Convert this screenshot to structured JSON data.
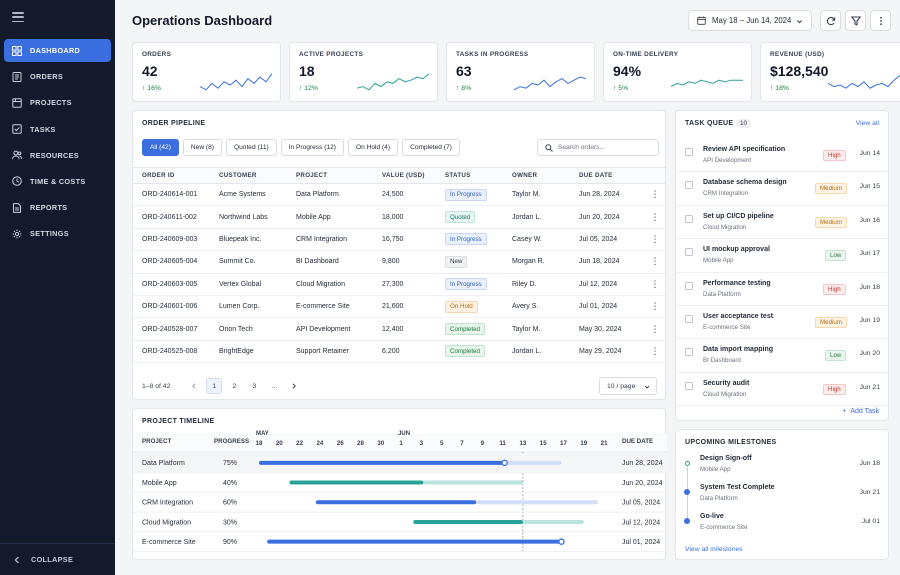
{
  "sidebar": {
    "items": [
      {
        "label": "DASHBOARD",
        "icon": "grid-icon",
        "active": true
      },
      {
        "label": "ORDERS",
        "icon": "receipt-icon",
        "active": false
      },
      {
        "label": "PROJECTS",
        "icon": "folder-icon",
        "active": false
      },
      {
        "label": "TASKS",
        "icon": "checkbox-icon",
        "active": false
      },
      {
        "label": "RESOURCES",
        "icon": "users-icon",
        "active": false
      },
      {
        "label": "TIME & COSTS",
        "icon": "clock-icon",
        "active": false
      },
      {
        "label": "REPORTS",
        "icon": "document-icon",
        "active": false
      },
      {
        "label": "SETTINGS",
        "icon": "gear-icon",
        "active": false
      }
    ],
    "collapse_label": "COLLAPSE"
  },
  "header": {
    "title": "Operations Dashboard",
    "date_range": "May 18 – Jun 14, 2024"
  },
  "kpis": [
    {
      "label": "ORDERS",
      "value": "42",
      "delta": "16%"
    },
    {
      "label": "ACTIVE PROJECTS",
      "value": "18",
      "delta": "12%"
    },
    {
      "label": "TASKS IN PROGRESS",
      "value": "63",
      "delta": "8%"
    },
    {
      "label": "ON-TIME DELIVERY",
      "value": "94%",
      "delta": "5%"
    },
    {
      "label": "REVENUE (USD)",
      "value": "$128,540",
      "delta": "18%"
    }
  ],
  "colors": {
    "accent": "#3b6fe0",
    "teal": "#2aa198",
    "positive": "#15803d",
    "sidebar_bg": "#121a2b"
  },
  "orders": {
    "title": "ORDER PIPELINE",
    "filters": [
      "All (42)",
      "New (8)",
      "Quoted (11)",
      "In Progress (12)",
      "On Hold (4)",
      "Completed (7)"
    ],
    "search_placeholder": "Search orders...",
    "columns": [
      "ORDER ID",
      "CUSTOMER",
      "PROJECT",
      "VALUE (USD)",
      "STATUS",
      "OWNER",
      "DUE DATE"
    ],
    "rows": [
      {
        "id": "ORD-240614-001",
        "customer": "Acme Systems",
        "project": "Data Platform",
        "value": "24,500",
        "status": "In Progress",
        "status_key": "inprogress",
        "owner": "Taylor M.",
        "due": "Jun 28, 2024"
      },
      {
        "id": "ORD-240611-002",
        "customer": "Northwind Labs",
        "project": "Mobile App",
        "value": "18,000",
        "status": "Quoted",
        "status_key": "quoted",
        "owner": "Jordan L.",
        "due": "Jun 20, 2024"
      },
      {
        "id": "ORD-240609-003",
        "customer": "Bluepeak Inc.",
        "project": "CRM Integration",
        "value": "16,750",
        "status": "In Progress",
        "status_key": "inprogress",
        "owner": "Casey W.",
        "due": "Jul 05, 2024"
      },
      {
        "id": "ORD-240605-004",
        "customer": "Summit Co.",
        "project": "BI Dashboard",
        "value": "9,800",
        "status": "New",
        "status_key": "new",
        "owner": "Morgan R.",
        "due": "Jun 18, 2024"
      },
      {
        "id": "ORD-240603-005",
        "customer": "Vertex Global",
        "project": "Cloud Migration",
        "value": "27,300",
        "status": "In Progress",
        "status_key": "inprogress",
        "owner": "Riley D.",
        "due": "Jul 12, 2024"
      },
      {
        "id": "ORD-240601-006",
        "customer": "Lumen Corp.",
        "project": "E-commerce Site",
        "value": "21,600",
        "status": "On Hold",
        "status_key": "onhold",
        "owner": "Avery S.",
        "due": "Jul 01, 2024"
      },
      {
        "id": "ORD-240528-007",
        "customer": "Orion Tech",
        "project": "API Development",
        "value": "12,400",
        "status": "Completed",
        "status_key": "completed",
        "owner": "Taylor M.",
        "due": "May 30, 2024"
      },
      {
        "id": "ORD-240525-008",
        "customer": "BrightEdge",
        "project": "Support Retainer",
        "value": "6,200",
        "status": "Completed",
        "status_key": "completed",
        "owner": "Jordan L.",
        "due": "May 29, 2024"
      }
    ],
    "pager": {
      "range": "1–8 of 42",
      "pages": [
        "1",
        "2",
        "3",
        "..."
      ],
      "current": "1",
      "per_page": "10 / page"
    }
  },
  "timeline": {
    "title": "PROJECT TIMELINE",
    "columns": {
      "project": "PROJECT",
      "progress": "PROGRESS",
      "due": "DUE DATE"
    },
    "months": [
      {
        "label": "MAY",
        "index": 0
      },
      {
        "label": "JUN",
        "index": 7
      }
    ],
    "days": [
      "18",
      "20",
      "22",
      "24",
      "26",
      "28",
      "30",
      "1",
      "3",
      "5",
      "7",
      "9",
      "11",
      "13",
      "15",
      "17",
      "19",
      "21"
    ],
    "today_index": 13,
    "rows": [
      {
        "project": "Data Platform",
        "progress": "75%",
        "due": "Jun 28, 2024",
        "start": 0,
        "filled_end": 12.1,
        "end": 14.9,
        "color": "blue",
        "marker": true
      },
      {
        "project": "Mobile App",
        "progress": "40%",
        "due": "Jun 20, 2024",
        "start": 1.5,
        "filled_end": 8.1,
        "end": 13.0,
        "color": "teal",
        "marker": false
      },
      {
        "project": "CRM Integration",
        "progress": "60%",
        "due": "Jul 05, 2024",
        "start": 2.8,
        "filled_end": 10.7,
        "end": 16.7,
        "color": "blue",
        "marker": false
      },
      {
        "project": "Cloud Migration",
        "progress": "30%",
        "due": "Jul 12, 2024",
        "start": 7.6,
        "filled_end": 13.0,
        "end": 16.0,
        "color": "teal",
        "marker": false
      },
      {
        "project": "E-commerce Site",
        "progress": "90%",
        "due": "Jul 01, 2024",
        "start": 0.4,
        "filled_end": 14.9,
        "end": 14.9,
        "color": "blue",
        "marker": true
      }
    ]
  },
  "tasks": {
    "title": "TASK QUEUE",
    "count": "10",
    "view_all": "View all",
    "items": [
      {
        "title": "Review API specification",
        "project": "API Development",
        "priority": "High",
        "due": "Jun 14"
      },
      {
        "title": "Database schema design",
        "project": "CRM Integration",
        "priority": "Medium",
        "due": "Jun 15"
      },
      {
        "title": "Set up CI/CD pipeline",
        "project": "Cloud Migration",
        "priority": "Medium",
        "due": "Jun 16"
      },
      {
        "title": "UI mockup approval",
        "project": "Mobile App",
        "priority": "Low",
        "due": "Jun 17"
      },
      {
        "title": "Performance testing",
        "project": "Data Platform",
        "priority": "High",
        "due": "Jun 18"
      },
      {
        "title": "User acceptance test",
        "project": "E-commerce Site",
        "priority": "Medium",
        "due": "Jun 19"
      },
      {
        "title": "Data import mapping",
        "project": "BI Dashboard",
        "priority": "Low",
        "due": "Jun 20"
      },
      {
        "title": "Security audit",
        "project": "Cloud Migration",
        "priority": "High",
        "due": "Jun 21"
      }
    ],
    "add_label": "Add Task"
  },
  "milestones": {
    "title": "UPCOMING MILESTONES",
    "items": [
      {
        "title": "Design Sign-off",
        "project": "Mobile App",
        "date": "Jun 18"
      },
      {
        "title": "System Test Complete",
        "project": "Data Platform",
        "date": "Jun 21"
      },
      {
        "title": "Go-live",
        "project": "E-commerce Site",
        "date": "Jul 01"
      }
    ],
    "view_all": "View all milestones"
  }
}
